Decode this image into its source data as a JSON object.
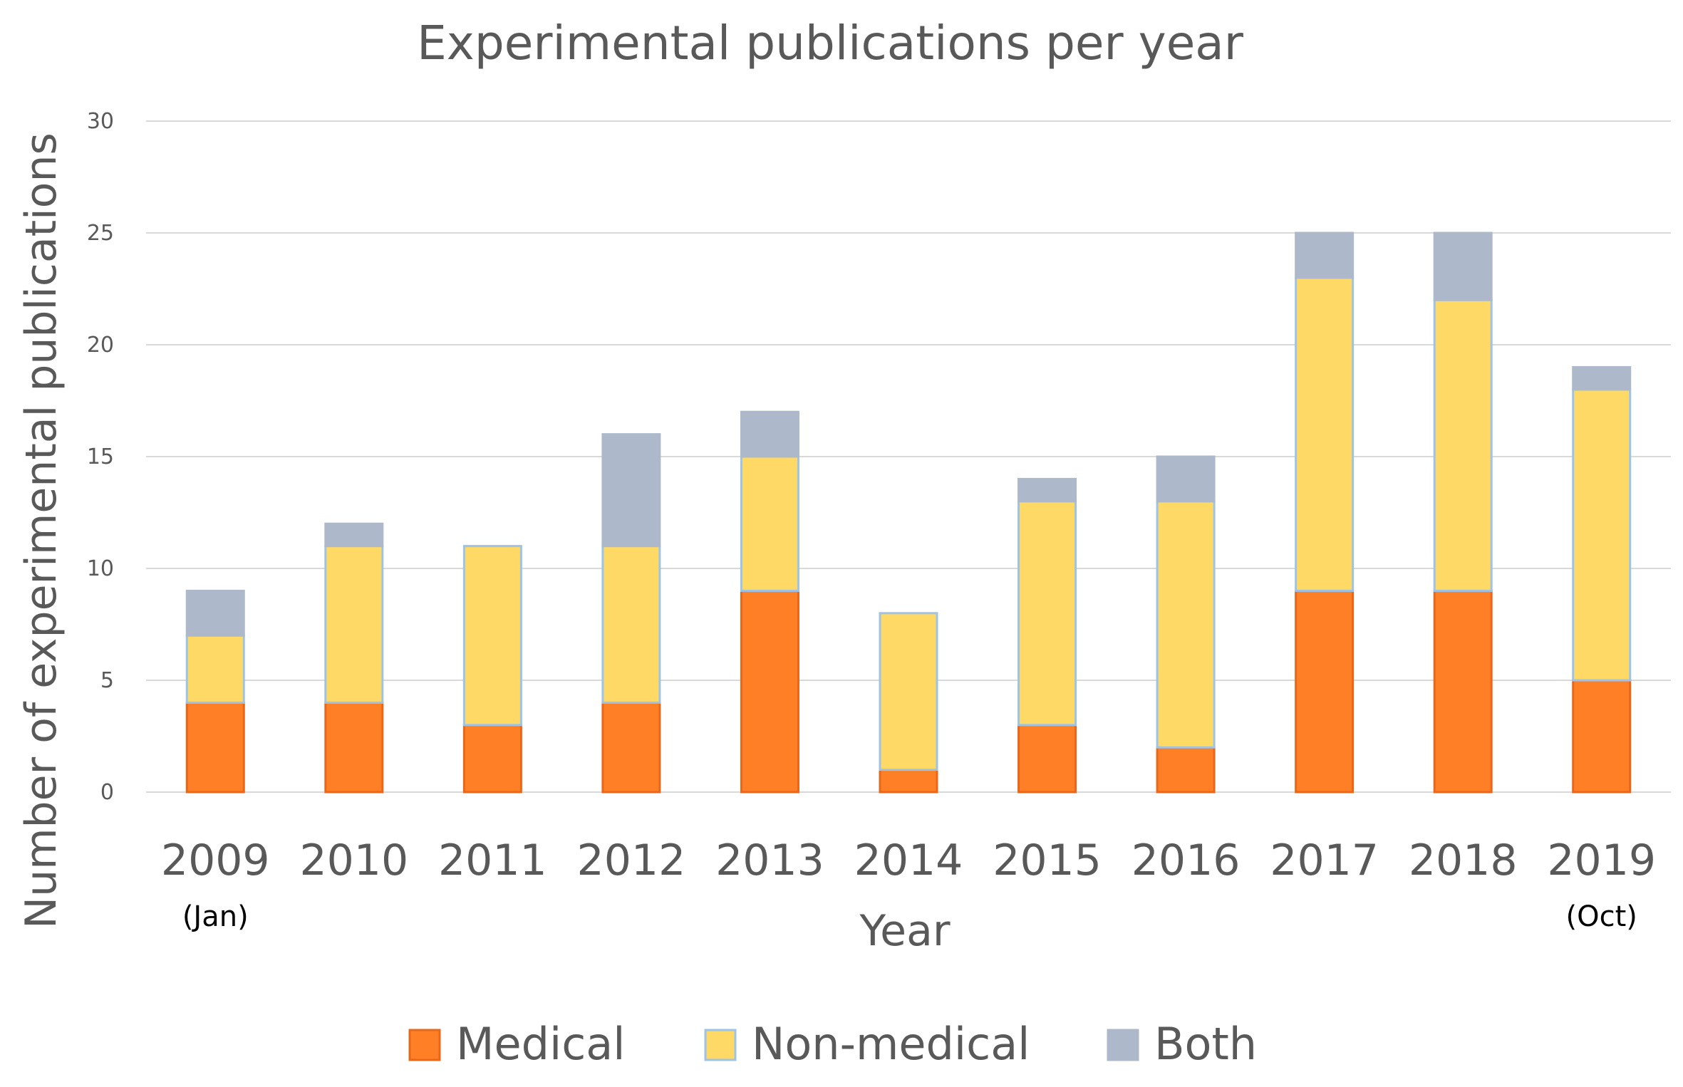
{
  "chart_data": {
    "type": "bar",
    "stacked": true,
    "title": "Experimental publications per year",
    "xlabel": "Year",
    "ylabel": "Number of experimental publications",
    "categories": [
      "2009",
      "2010",
      "2011",
      "2012",
      "2013",
      "2014",
      "2015",
      "2016",
      "2017",
      "2018",
      "2019"
    ],
    "category_notes": [
      "(Jan)",
      "",
      "",
      "",
      "",
      "",
      "",
      "",
      "",
      "",
      "(Oct)"
    ],
    "ylim": [
      0,
      30
    ],
    "yticks": [
      0,
      5,
      10,
      15,
      20,
      25,
      30
    ],
    "grid": true,
    "legend_position": "bottom",
    "series": [
      {
        "name": "Medical",
        "color": "#FF7F27",
        "edge": "#E8671A",
        "values": [
          4,
          4,
          3,
          4,
          9,
          1,
          3,
          2,
          9,
          9,
          5
        ]
      },
      {
        "name": "Non-medical",
        "color": "#FFD966",
        "edge": "#9DC3E6",
        "values": [
          3,
          7,
          8,
          7,
          6,
          7,
          10,
          11,
          14,
          13,
          13
        ]
      },
      {
        "name": "Both",
        "color": "#ADB9CA",
        "edge": "#ADB9CA",
        "values": [
          2,
          1,
          0,
          5,
          2,
          0,
          1,
          2,
          2,
          3,
          1
        ]
      }
    ]
  }
}
